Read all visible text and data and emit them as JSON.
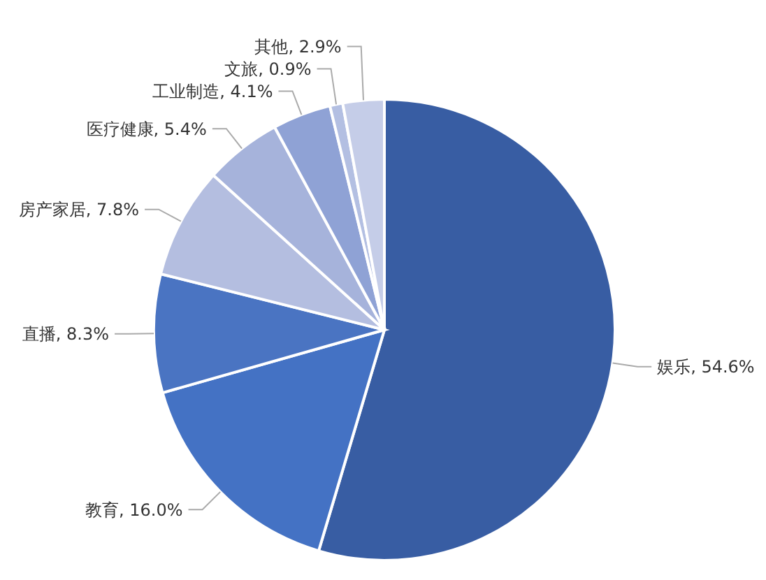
{
  "chart_data": {
    "type": "pie",
    "categories": [
      "娱乐",
      "教育",
      "直播",
      "房产家居",
      "医疗健康",
      "工业制造",
      "文旅",
      "其他"
    ],
    "values": [
      54.6,
      16.0,
      8.3,
      7.8,
      5.4,
      4.1,
      0.9,
      2.9
    ],
    "value_labels": [
      "54.6%",
      "16.0%",
      "8.3%",
      "7.8%",
      "5.4%",
      "4.1%",
      "0.9%",
      "2.9%"
    ],
    "colors": [
      "#385da3",
      "#4472c4",
      "#4a74c2",
      "#b4bee0",
      "#a6b3db",
      "#8fa2d5",
      "#b3bfe2",
      "#c5cde8"
    ]
  }
}
